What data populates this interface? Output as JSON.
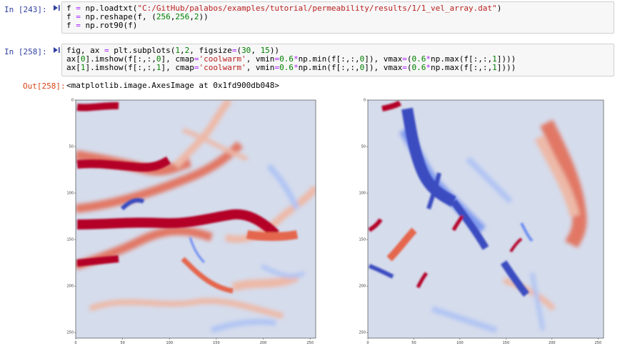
{
  "cells": [
    {
      "prompt": "In [243]:",
      "lines": [
        [
          [
            "f",
            "var"
          ],
          [
            " = ",
            "op"
          ],
          [
            "np",
            "var"
          ],
          [
            ".loadtxt(",
            "var"
          ],
          [
            "\"C:/GitHub/palabos/examples/tutorial/permeability/results/1/1_vel_array.dat\"",
            "str"
          ],
          [
            ")",
            "var"
          ]
        ],
        [
          [
            "f",
            "var"
          ],
          [
            " = ",
            "op"
          ],
          [
            "np",
            "var"
          ],
          [
            ".reshape(f, (",
            "var"
          ],
          [
            "256",
            "num"
          ],
          [
            ",",
            "var"
          ],
          [
            "256",
            "num"
          ],
          [
            ",",
            "var"
          ],
          [
            "2",
            "num"
          ],
          [
            "))",
            "var"
          ]
        ],
        [
          [
            "f",
            "var"
          ],
          [
            " = ",
            "op"
          ],
          [
            "np",
            "var"
          ],
          [
            ".rot90(f)",
            "var"
          ]
        ]
      ]
    },
    {
      "prompt": "In [258]:",
      "lines": [
        [
          [
            "fig, ax ",
            "var"
          ],
          [
            "= ",
            "op"
          ],
          [
            "plt.subplots(",
            "var"
          ],
          [
            "1",
            "num"
          ],
          [
            ",",
            "var"
          ],
          [
            "2",
            "num"
          ],
          [
            ", figsize",
            "var"
          ],
          [
            "=",
            "op"
          ],
          [
            "(",
            "var"
          ],
          [
            "30",
            "num"
          ],
          [
            ", ",
            "var"
          ],
          [
            "15",
            "num"
          ],
          [
            "))",
            "var"
          ]
        ],
        [
          [
            "ax[",
            "var"
          ],
          [
            "0",
            "num"
          ],
          [
            "].imshow(f[:,:,",
            "var"
          ],
          [
            "0",
            "num"
          ],
          [
            "], cmap",
            "var"
          ],
          [
            "=",
            "op"
          ],
          [
            "'coolwarm'",
            "str"
          ],
          [
            ", vmin",
            "var"
          ],
          [
            "=",
            "op"
          ],
          [
            "0.6",
            "num"
          ],
          [
            "*",
            "op"
          ],
          [
            "np.min(f[:,:,",
            "var"
          ],
          [
            "0",
            "num"
          ],
          [
            "]), vmax",
            "var"
          ],
          [
            "=",
            "op"
          ],
          [
            "(",
            "var"
          ],
          [
            "0.6",
            "num"
          ],
          [
            "*",
            "op"
          ],
          [
            "np.max(f[:,:,",
            "var"
          ],
          [
            "1",
            "num"
          ],
          [
            "])))",
            "var"
          ]
        ],
        [
          [
            "ax[",
            "var"
          ],
          [
            "1",
            "num"
          ],
          [
            "].imshow(f[:,:,",
            "var"
          ],
          [
            "1",
            "num"
          ],
          [
            "], cmap",
            "var"
          ],
          [
            "=",
            "op"
          ],
          [
            "'coolwarm'",
            "str"
          ],
          [
            ", vmin",
            "var"
          ],
          [
            "=",
            "op"
          ],
          [
            "0.6",
            "num"
          ],
          [
            "*",
            "op"
          ],
          [
            "np.min(f[:,:,",
            "var"
          ],
          [
            "0",
            "num"
          ],
          [
            "]), vmax",
            "var"
          ],
          [
            "=",
            "op"
          ],
          [
            "(",
            "var"
          ],
          [
            "0.6",
            "num"
          ],
          [
            "*",
            "op"
          ],
          [
            "np.max(f[:,:,",
            "var"
          ],
          [
            "1",
            "num"
          ],
          [
            "])))",
            "var"
          ]
        ]
      ]
    }
  ],
  "output": {
    "prompt": "Out[258]:",
    "text": "<matplotlib.image.AxesImage at 0x1fd900db048>"
  },
  "icons": {
    "run": "run-cell-icon"
  },
  "colors": {
    "background_blue": "#d5dcec",
    "strong_red": "#b40426",
    "mid_red": "#e4664e",
    "light_red": "#f2b39b",
    "strong_blue": "#3b4cc0",
    "mid_blue": "#6f8ef0",
    "light_blue": "#a9c0f5"
  },
  "plots": [
    {
      "name": "ax0",
      "x_ticks": [
        "0",
        "50",
        "100",
        "150",
        "200",
        "250"
      ],
      "y_ticks": [
        "0",
        "50",
        "100",
        "150",
        "200",
        "250"
      ]
    },
    {
      "name": "ax1",
      "x_ticks": [
        "0",
        "50",
        "100",
        "150",
        "200",
        "250"
      ],
      "y_ticks": [
        "0",
        "50",
        "100",
        "150",
        "200",
        "250"
      ]
    }
  ]
}
